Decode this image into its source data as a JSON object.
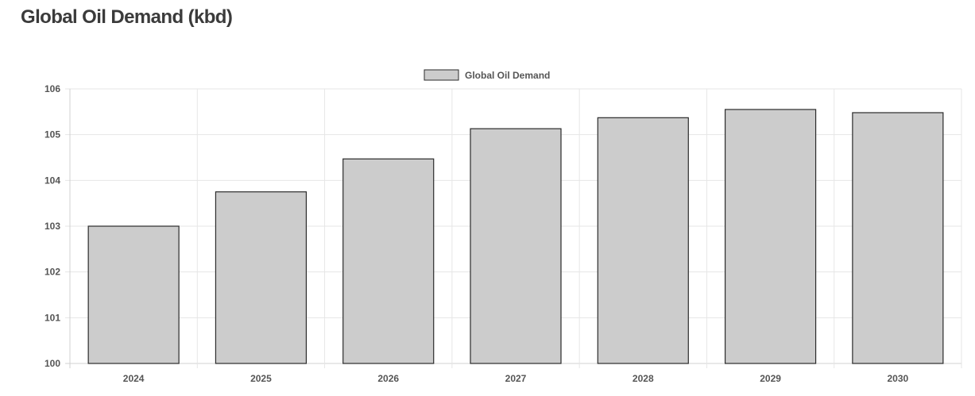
{
  "page": {
    "title": "Global Oil Demand (kbd)"
  },
  "chart_data": {
    "type": "bar",
    "title": "Global Oil Demand (kbd)",
    "categories": [
      "2024",
      "2025",
      "2026",
      "2027",
      "2028",
      "2029",
      "2030"
    ],
    "series": [
      {
        "name": "Global Oil Demand",
        "values": [
          103.0,
          103.75,
          104.47,
          105.13,
          105.37,
          105.55,
          105.48
        ]
      }
    ],
    "xlabel": "",
    "ylabel": "",
    "ylim": [
      100,
      106
    ],
    "yticks": [
      "100",
      "101",
      "102",
      "103",
      "104",
      "105",
      "106"
    ],
    "grid": true,
    "legend_position": "top-center",
    "colors": {
      "bar_fill": "#cccccc",
      "bar_stroke": "#2b2b2b",
      "grid": "#e6e6e6",
      "axis": "#d0d0d0"
    }
  }
}
